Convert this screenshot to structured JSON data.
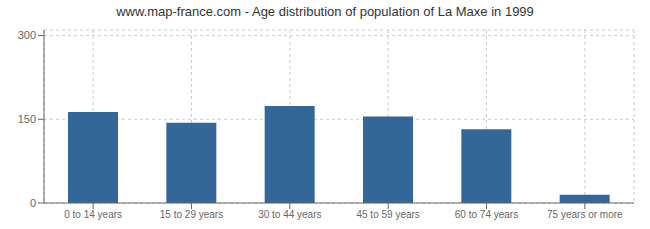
{
  "chart_data": {
    "type": "bar",
    "title": "www.map-france.com - Age distribution of population of La Maxe in 1999",
    "categories": [
      "0 to 14 years",
      "15 to 29 years",
      "30 to 44 years",
      "45 to 59 years",
      "60 to 74 years",
      "75 years or more"
    ],
    "values": [
      163,
      144,
      174,
      155,
      132,
      15
    ],
    "color": "#336699",
    "ylim": [
      0,
      310
    ],
    "yticks": [
      0,
      150,
      300
    ],
    "grid": true
  }
}
